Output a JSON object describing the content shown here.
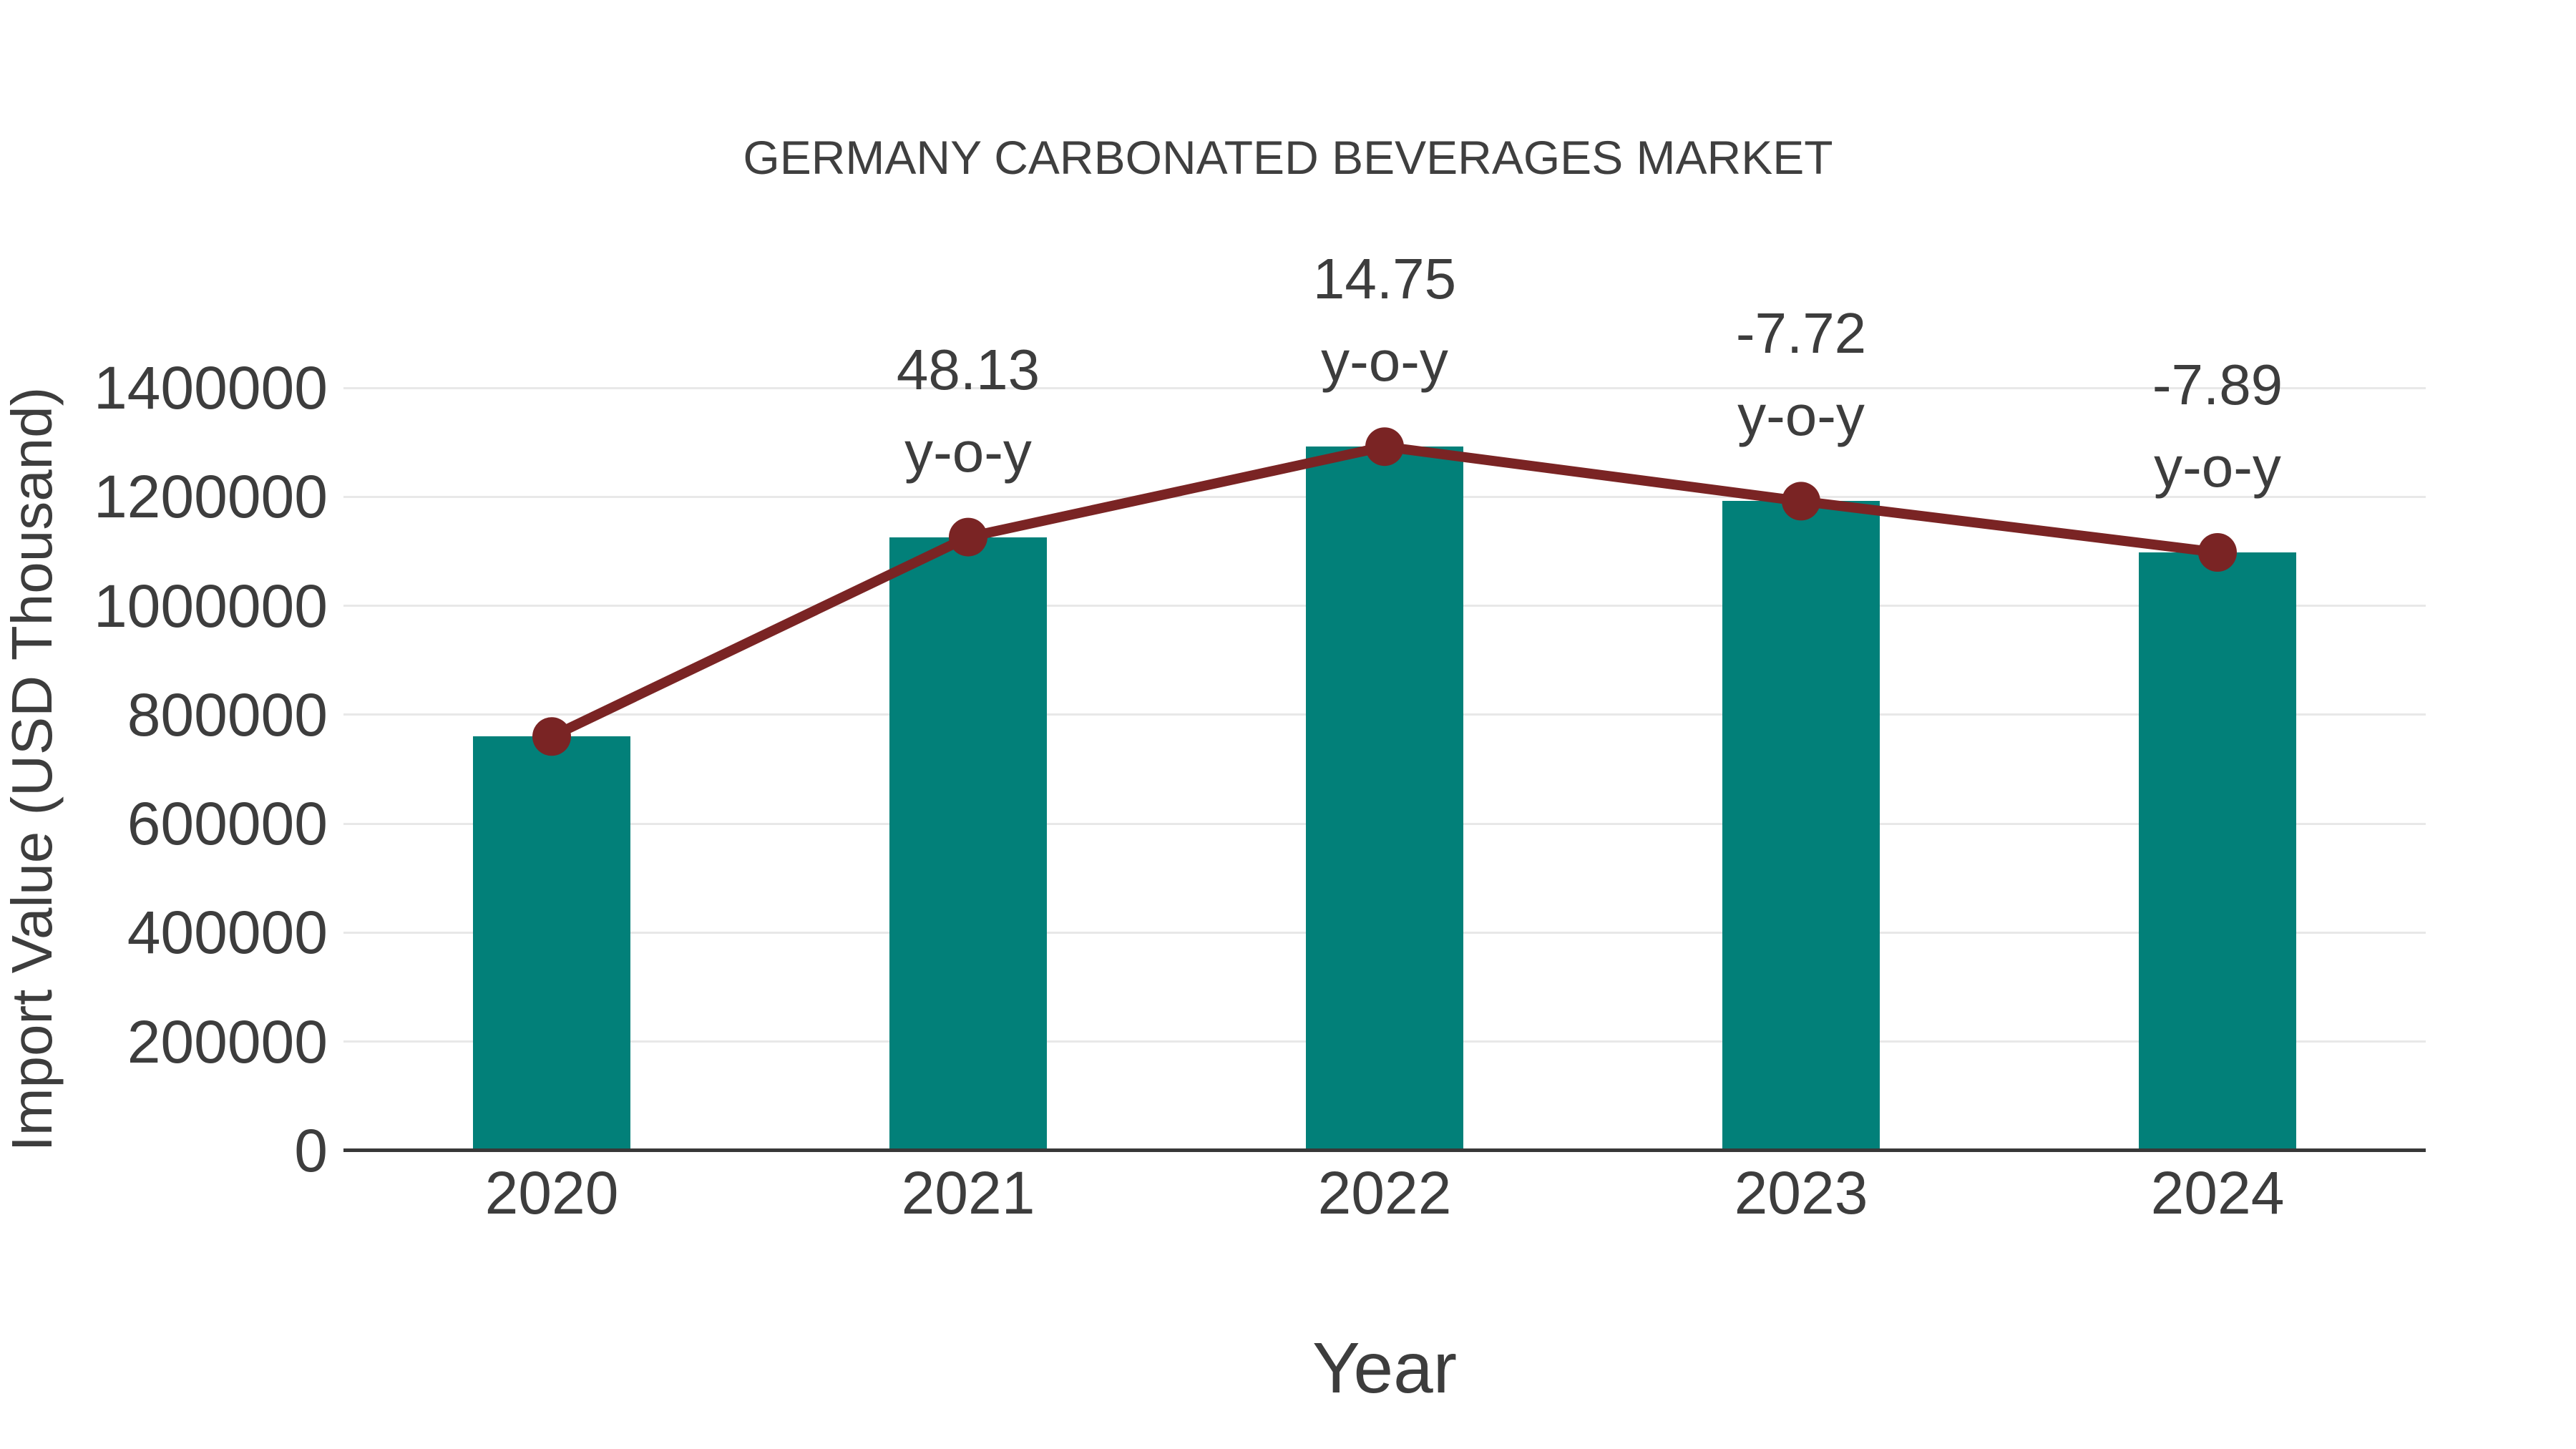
{
  "chart_data": {
    "type": "bar-line-combo",
    "title": "GERMANY CARBONATED BEVERAGES MARKET",
    "xlabel": "Year",
    "ylabel": "Import Value (USD Thousand)",
    "categories": [
      "2020",
      "2021",
      "2022",
      "2023",
      "2024"
    ],
    "bar_series": {
      "name": "Import Value (USD Thousand)",
      "color": "#028079",
      "values": [
        760000,
        1126000,
        1292000,
        1192000,
        1098000
      ]
    },
    "line_series": {
      "name": "y-o-y growth",
      "color": "#7a2424",
      "values_on_axis": [
        760000,
        1126000,
        1292000,
        1192000,
        1098000
      ],
      "yoy_percent": [
        null,
        48.13,
        14.75,
        -7.72,
        -7.89
      ]
    },
    "annotations": [
      {
        "index": 1,
        "value": "48.13",
        "label": "y-o-y"
      },
      {
        "index": 2,
        "value": "14.75",
        "label": "y-o-y"
      },
      {
        "index": 3,
        "value": "-7.72",
        "label": "y-o-y"
      },
      {
        "index": 4,
        "value": "-7.89",
        "label": "y-o-y"
      }
    ],
    "yticks": [
      "0",
      "200000",
      "400000",
      "600000",
      "800000",
      "1000000",
      "1200000",
      "1400000"
    ],
    "ylim": [
      0,
      1400000
    ],
    "grid": true,
    "legend": "none",
    "colors": {
      "bar": "#028079",
      "line": "#7a2424",
      "text": "#3d3d3d",
      "gridline": "#e8e8e8",
      "axis": "#383838",
      "background": "#ffffff"
    }
  }
}
